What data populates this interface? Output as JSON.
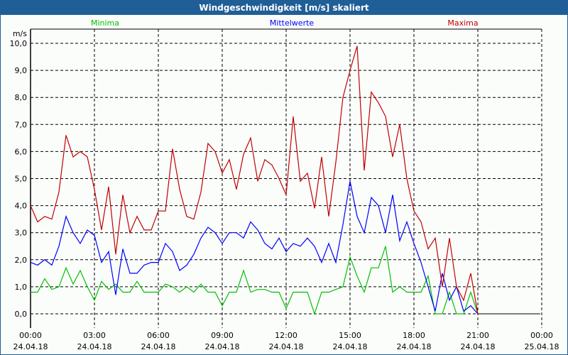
{
  "window": {
    "title": "Windgeschwindigkeit [m/s] skaliert"
  },
  "chart_data": {
    "type": "line",
    "title": "Windgeschwindigkeit [m/s] skaliert",
    "ylabel": "m/s",
    "ylim": [
      0,
      10
    ],
    "xlim_hours": [
      0,
      24
    ],
    "grid": true,
    "legend_placement": "top",
    "y_ticks": [
      "0,0",
      "1,0",
      "2,0",
      "3,0",
      "4,0",
      "5,0",
      "6,0",
      "7,0",
      "8,0",
      "9,0",
      "10,0"
    ],
    "x_ticks": [
      {
        "time": "00:00",
        "date": "24.04.18"
      },
      {
        "time": "03:00",
        "date": "24.04.18"
      },
      {
        "time": "06:00",
        "date": "24.04.18"
      },
      {
        "time": "09:00",
        "date": "24.04.18"
      },
      {
        "time": "12:00",
        "date": "24.04.18"
      },
      {
        "time": "15:00",
        "date": "24.04.18"
      },
      {
        "time": "18:00",
        "date": "24.04.18"
      },
      {
        "time": "21:00",
        "date": "24.04.18"
      },
      {
        "time": "00:00",
        "date": "25.04.18"
      }
    ],
    "x_step_minutes": 20,
    "series": [
      {
        "name": "Minima",
        "color": "#00c000",
        "values": [
          0.8,
          0.8,
          1.3,
          0.9,
          1.0,
          1.7,
          1.1,
          1.6,
          1.0,
          0.5,
          1.2,
          0.9,
          1.1,
          0.8,
          0.8,
          1.2,
          0.8,
          0.8,
          0.8,
          1.1,
          1.0,
          0.8,
          1.0,
          0.8,
          1.1,
          0.8,
          0.8,
          0.3,
          0.8,
          0.8,
          1.6,
          0.8,
          0.9,
          0.9,
          0.8,
          0.8,
          0.2,
          0.8,
          0.8,
          0.8,
          0.0,
          0.8,
          0.8,
          0.9,
          1.0,
          2.1,
          1.4,
          0.8,
          1.7,
          1.7,
          2.5,
          0.8,
          1.0,
          0.8,
          0.8,
          0.8,
          1.4,
          0.0,
          0.0,
          0.8,
          0.0,
          0.0,
          0.8,
          0.0
        ]
      },
      {
        "name": "Mittelwerte",
        "color": "#0000ff",
        "values": [
          1.9,
          1.8,
          2.0,
          1.8,
          2.5,
          3.6,
          3.0,
          2.6,
          3.1,
          2.9,
          1.9,
          2.3,
          0.7,
          2.4,
          1.5,
          1.5,
          1.8,
          1.9,
          1.9,
          2.6,
          2.3,
          1.6,
          1.8,
          2.2,
          2.8,
          3.2,
          3.0,
          2.6,
          3.0,
          3.0,
          2.8,
          3.4,
          3.1,
          2.6,
          2.4,
          2.8,
          2.3,
          2.6,
          2.5,
          2.8,
          2.5,
          1.9,
          2.6,
          1.9,
          3.3,
          4.9,
          3.6,
          3.0,
          4.3,
          4.0,
          3.0,
          4.4,
          2.7,
          3.4,
          2.6,
          1.9,
          1.0,
          0.1,
          1.5,
          0.5,
          1.0,
          0.1,
          0.3,
          0.0
        ]
      },
      {
        "name": "Maxima",
        "color": "#c00000",
        "values": [
          4.0,
          3.4,
          3.6,
          3.5,
          4.5,
          6.6,
          5.8,
          6.0,
          5.8,
          4.6,
          3.1,
          4.7,
          2.2,
          4.4,
          3.0,
          3.6,
          3.1,
          3.1,
          3.8,
          3.8,
          6.1,
          4.6,
          3.6,
          3.5,
          4.5,
          6.3,
          6.0,
          5.2,
          5.7,
          4.6,
          5.9,
          6.5,
          4.9,
          5.7,
          5.5,
          5.0,
          4.4,
          7.3,
          4.9,
          5.2,
          3.9,
          5.8,
          3.6,
          5.6,
          8.0,
          9.0,
          9.9,
          5.3,
          8.2,
          7.8,
          7.3,
          5.8,
          7.0,
          5.0,
          3.8,
          3.4,
          2.4,
          2.8,
          1.0,
          2.8,
          1.0,
          0.5,
          1.5,
          0.0
        ]
      }
    ]
  }
}
